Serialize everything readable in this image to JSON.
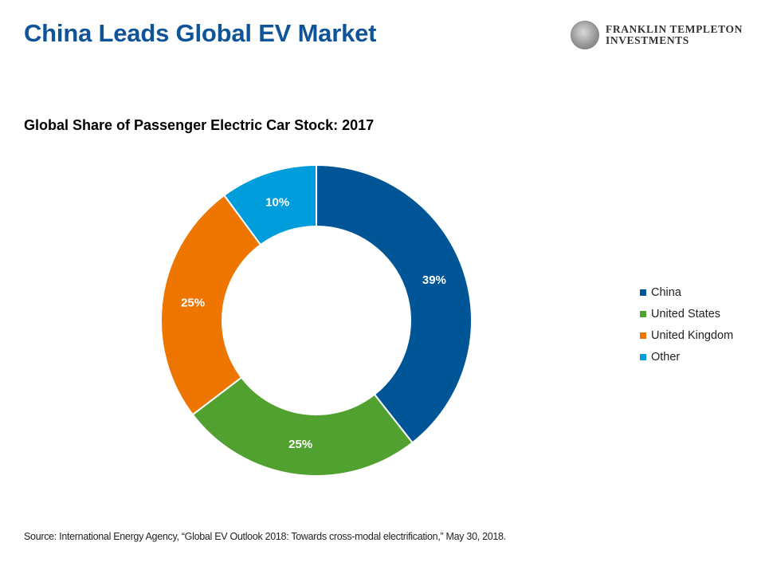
{
  "header": {
    "title": "China Leads Global EV Market",
    "logo": {
      "line1": "FRANKLIN TEMPLETON",
      "line2": "INVESTMENTS",
      "icon": "portrait-medallion-icon"
    }
  },
  "chart_data": {
    "type": "pie",
    "variant": "donut",
    "title": "Global Share of Passenger Electric Car Stock: 2017",
    "categories": [
      "China",
      "United States",
      "United Kingdom",
      "Other"
    ],
    "values": [
      39,
      25,
      25,
      10
    ],
    "labels": [
      "39%",
      "25%",
      "25%",
      "10%"
    ],
    "colors": [
      "#005596",
      "#50a12f",
      "#ee7500",
      "#009ddc"
    ],
    "start": "12 o'clock, clockwise",
    "legend_position": "right"
  },
  "footer": {
    "source": "Source: International Energy Agency, “Global EV Outlook 2018: Towards cross-modal electrification,” May 30, 2018."
  }
}
